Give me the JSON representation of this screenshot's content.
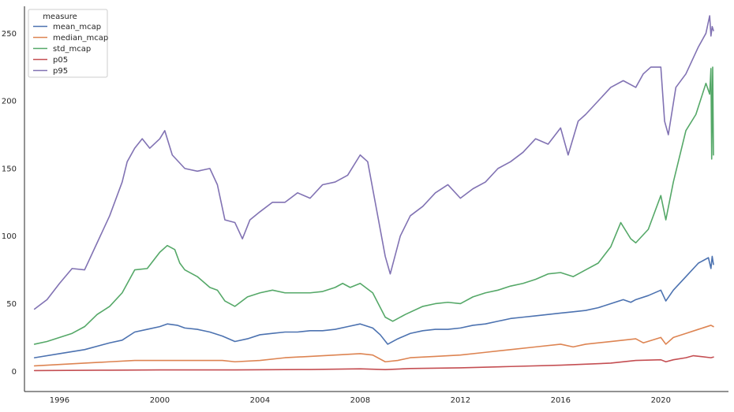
{
  "chart_data": {
    "type": "line",
    "title": "",
    "xlabel": "",
    "ylabel": "",
    "xlim": [
      1994.6,
      2022.7
    ],
    "ylim": [
      -15,
      270
    ],
    "xticks": [
      1996,
      2000,
      2004,
      2008,
      2012,
      2016,
      2020
    ],
    "xtick_labels": [
      "1996",
      "2000",
      "2004",
      "2008",
      "2012",
      "2016",
      "2020"
    ],
    "yticks": [
      0,
      50,
      100,
      150,
      200,
      250
    ],
    "ytick_labels": [
      "0",
      "50",
      "100",
      "150",
      "200",
      "250"
    ],
    "grid": false,
    "legend": {
      "title": "measure",
      "placement": "top-left",
      "entries": [
        "mean_mcap",
        "median_mcap",
        "std_mcap",
        "p05",
        "p95"
      ]
    },
    "series": [
      {
        "name": "mean_mcap",
        "color": "#4c72b0",
        "points": [
          [
            1995.0,
            10
          ],
          [
            1996.0,
            13
          ],
          [
            1997.0,
            16
          ],
          [
            1998.0,
            21
          ],
          [
            1998.5,
            23
          ],
          [
            1999.0,
            29
          ],
          [
            1999.5,
            31
          ],
          [
            2000.0,
            33
          ],
          [
            2000.3,
            35
          ],
          [
            2000.7,
            34
          ],
          [
            2001.0,
            32
          ],
          [
            2001.5,
            31
          ],
          [
            2002.0,
            29
          ],
          [
            2002.5,
            26
          ],
          [
            2003.0,
            22
          ],
          [
            2003.5,
            24
          ],
          [
            2004.0,
            27
          ],
          [
            2004.5,
            28
          ],
          [
            2005.0,
            29
          ],
          [
            2005.5,
            29
          ],
          [
            2006.0,
            30
          ],
          [
            2006.5,
            30
          ],
          [
            2007.0,
            31
          ],
          [
            2007.5,
            33
          ],
          [
            2008.0,
            35
          ],
          [
            2008.5,
            32
          ],
          [
            2008.8,
            27
          ],
          [
            2009.1,
            20
          ],
          [
            2009.5,
            24
          ],
          [
            2010.0,
            28
          ],
          [
            2010.5,
            30
          ],
          [
            2011.0,
            31
          ],
          [
            2011.5,
            31
          ],
          [
            2012.0,
            32
          ],
          [
            2012.5,
            34
          ],
          [
            2013.0,
            35
          ],
          [
            2013.5,
            37
          ],
          [
            2014.0,
            39
          ],
          [
            2014.5,
            40
          ],
          [
            2015.0,
            41
          ],
          [
            2015.5,
            42
          ],
          [
            2016.0,
            43
          ],
          [
            2016.5,
            44
          ],
          [
            2017.0,
            45
          ],
          [
            2017.5,
            47
          ],
          [
            2018.0,
            50
          ],
          [
            2018.5,
            53
          ],
          [
            2018.8,
            51
          ],
          [
            2019.0,
            53
          ],
          [
            2019.5,
            56
          ],
          [
            2020.0,
            60
          ],
          [
            2020.2,
            52
          ],
          [
            2020.5,
            60
          ],
          [
            2021.0,
            70
          ],
          [
            2021.5,
            80
          ],
          [
            2021.9,
            84
          ],
          [
            2022.0,
            76
          ],
          [
            2022.05,
            85
          ],
          [
            2022.1,
            79
          ]
        ]
      },
      {
        "name": "median_mcap",
        "color": "#dd8452",
        "points": [
          [
            1995.0,
            4
          ],
          [
            1996.0,
            5
          ],
          [
            1997.0,
            6
          ],
          [
            1998.0,
            7
          ],
          [
            1999.0,
            8
          ],
          [
            2000.0,
            8
          ],
          [
            2001.0,
            8
          ],
          [
            2002.0,
            8
          ],
          [
            2002.5,
            8
          ],
          [
            2003.0,
            7
          ],
          [
            2004.0,
            8
          ],
          [
            2005.0,
            10
          ],
          [
            2006.0,
            11
          ],
          [
            2007.0,
            12
          ],
          [
            2008.0,
            13
          ],
          [
            2008.5,
            12
          ],
          [
            2009.0,
            7
          ],
          [
            2009.5,
            8
          ],
          [
            2010.0,
            10
          ],
          [
            2011.0,
            11
          ],
          [
            2012.0,
            12
          ],
          [
            2013.0,
            14
          ],
          [
            2014.0,
            16
          ],
          [
            2015.0,
            18
          ],
          [
            2016.0,
            20
          ],
          [
            2016.5,
            18
          ],
          [
            2017.0,
            20
          ],
          [
            2018.0,
            22
          ],
          [
            2019.0,
            24
          ],
          [
            2019.3,
            21
          ],
          [
            2020.0,
            25
          ],
          [
            2020.2,
            20
          ],
          [
            2020.5,
            25
          ],
          [
            2021.0,
            28
          ],
          [
            2021.5,
            31
          ],
          [
            2022.0,
            34
          ],
          [
            2022.1,
            33
          ]
        ]
      },
      {
        "name": "std_mcap",
        "color": "#55a868",
        "points": [
          [
            1995.0,
            20
          ],
          [
            1995.5,
            22
          ],
          [
            1996.0,
            25
          ],
          [
            1996.5,
            28
          ],
          [
            1997.0,
            33
          ],
          [
            1997.5,
            42
          ],
          [
            1998.0,
            48
          ],
          [
            1998.5,
            58
          ],
          [
            1999.0,
            75
          ],
          [
            1999.5,
            76
          ],
          [
            2000.0,
            88
          ],
          [
            2000.3,
            93
          ],
          [
            2000.6,
            90
          ],
          [
            2000.8,
            80
          ],
          [
            2001.0,
            75
          ],
          [
            2001.5,
            70
          ],
          [
            2002.0,
            62
          ],
          [
            2002.3,
            60
          ],
          [
            2002.6,
            52
          ],
          [
            2003.0,
            48
          ],
          [
            2003.5,
            55
          ],
          [
            2004.0,
            58
          ],
          [
            2004.5,
            60
          ],
          [
            2005.0,
            58
          ],
          [
            2005.5,
            58
          ],
          [
            2006.0,
            58
          ],
          [
            2006.5,
            59
          ],
          [
            2007.0,
            62
          ],
          [
            2007.3,
            65
          ],
          [
            2007.6,
            62
          ],
          [
            2008.0,
            65
          ],
          [
            2008.5,
            58
          ],
          [
            2009.0,
            40
          ],
          [
            2009.3,
            37
          ],
          [
            2009.8,
            42
          ],
          [
            2010.5,
            48
          ],
          [
            2011.0,
            50
          ],
          [
            2011.5,
            51
          ],
          [
            2012.0,
            50
          ],
          [
            2012.5,
            55
          ],
          [
            2013.0,
            58
          ],
          [
            2013.5,
            60
          ],
          [
            2014.0,
            63
          ],
          [
            2014.5,
            65
          ],
          [
            2015.0,
            68
          ],
          [
            2015.5,
            72
          ],
          [
            2016.0,
            73
          ],
          [
            2016.5,
            70
          ],
          [
            2017.0,
            75
          ],
          [
            2017.5,
            80
          ],
          [
            2018.0,
            92
          ],
          [
            2018.4,
            110
          ],
          [
            2018.8,
            98
          ],
          [
            2019.0,
            95
          ],
          [
            2019.5,
            105
          ],
          [
            2020.0,
            130
          ],
          [
            2020.2,
            112
          ],
          [
            2020.5,
            140
          ],
          [
            2021.0,
            178
          ],
          [
            2021.4,
            190
          ],
          [
            2021.8,
            213
          ],
          [
            2021.95,
            205
          ],
          [
            2022.0,
            224
          ],
          [
            2022.03,
            157
          ],
          [
            2022.07,
            225
          ],
          [
            2022.1,
            160
          ]
        ]
      },
      {
        "name": "p05",
        "color": "#c44e52",
        "points": [
          [
            1995.0,
            0.5
          ],
          [
            1998.0,
            0.8
          ],
          [
            2000.0,
            1.0
          ],
          [
            2003.0,
            1.0
          ],
          [
            2006.0,
            1.3
          ],
          [
            2008.0,
            1.8
          ],
          [
            2009.0,
            1.2
          ],
          [
            2010.0,
            2.0
          ],
          [
            2012.0,
            2.5
          ],
          [
            2014.0,
            3.5
          ],
          [
            2016.0,
            4.5
          ],
          [
            2018.0,
            6.0
          ],
          [
            2019.0,
            8.0
          ],
          [
            2020.0,
            8.5
          ],
          [
            2020.2,
            7.0
          ],
          [
            2020.5,
            8.5
          ],
          [
            2021.0,
            10.0
          ],
          [
            2021.3,
            11.5
          ],
          [
            2022.0,
            10.0
          ],
          [
            2022.1,
            10.5
          ]
        ]
      },
      {
        "name": "p95",
        "color": "#8172b3",
        "points": [
          [
            1995.0,
            46
          ],
          [
            1995.5,
            53
          ],
          [
            1996.0,
            65
          ],
          [
            1996.5,
            76
          ],
          [
            1997.0,
            75
          ],
          [
            1997.5,
            95
          ],
          [
            1998.0,
            115
          ],
          [
            1998.5,
            140
          ],
          [
            1998.7,
            155
          ],
          [
            1999.0,
            165
          ],
          [
            1999.3,
            172
          ],
          [
            1999.6,
            165
          ],
          [
            2000.0,
            172
          ],
          [
            2000.2,
            178
          ],
          [
            2000.5,
            160
          ],
          [
            2001.0,
            150
          ],
          [
            2001.5,
            148
          ],
          [
            2002.0,
            150
          ],
          [
            2002.3,
            138
          ],
          [
            2002.6,
            112
          ],
          [
            2003.0,
            110
          ],
          [
            2003.3,
            98
          ],
          [
            2003.6,
            112
          ],
          [
            2004.0,
            118
          ],
          [
            2004.5,
            125
          ],
          [
            2005.0,
            125
          ],
          [
            2005.5,
            132
          ],
          [
            2006.0,
            128
          ],
          [
            2006.5,
            138
          ],
          [
            2007.0,
            140
          ],
          [
            2007.5,
            145
          ],
          [
            2008.0,
            160
          ],
          [
            2008.3,
            155
          ],
          [
            2008.6,
            125
          ],
          [
            2009.0,
            85
          ],
          [
            2009.2,
            72
          ],
          [
            2009.6,
            100
          ],
          [
            2010.0,
            115
          ],
          [
            2010.5,
            122
          ],
          [
            2011.0,
            132
          ],
          [
            2011.5,
            138
          ],
          [
            2012.0,
            128
          ],
          [
            2012.5,
            135
          ],
          [
            2013.0,
            140
          ],
          [
            2013.5,
            150
          ],
          [
            2014.0,
            155
          ],
          [
            2014.5,
            162
          ],
          [
            2015.0,
            172
          ],
          [
            2015.5,
            168
          ],
          [
            2016.0,
            180
          ],
          [
            2016.3,
            160
          ],
          [
            2016.7,
            185
          ],
          [
            2017.0,
            190
          ],
          [
            2017.5,
            200
          ],
          [
            2018.0,
            210
          ],
          [
            2018.5,
            215
          ],
          [
            2019.0,
            210
          ],
          [
            2019.3,
            220
          ],
          [
            2019.6,
            225
          ],
          [
            2020.0,
            225
          ],
          [
            2020.15,
            185
          ],
          [
            2020.3,
            175
          ],
          [
            2020.6,
            210
          ],
          [
            2021.0,
            220
          ],
          [
            2021.5,
            240
          ],
          [
            2021.8,
            250
          ],
          [
            2021.95,
            263
          ],
          [
            2022.0,
            248
          ],
          [
            2022.05,
            255
          ],
          [
            2022.1,
            252
          ]
        ]
      }
    ]
  }
}
